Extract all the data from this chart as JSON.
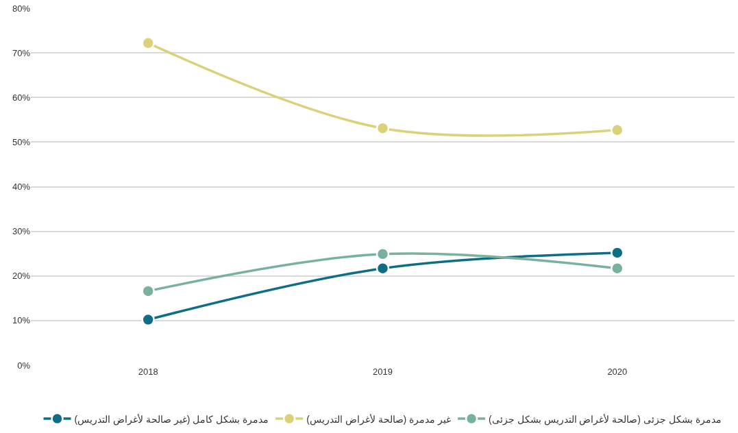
{
  "chart_data": {
    "type": "line",
    "categories": [
      "2018",
      "2019",
      "2020"
    ],
    "series": [
      {
        "name": "مدمرة بشكل كامل (غير صالحة لأغراض التدريس)",
        "color": "#0e6e85",
        "values": [
          10.2,
          21.7,
          25.2
        ]
      },
      {
        "name": "غير مدمرة (صالحة لأغراض التدريس)",
        "color": "#dbd179",
        "values": [
          72.2,
          53.1,
          52.7
        ]
      },
      {
        "name": "مدمرة بشكل جزئى (صالحة لأغراض التدريس بشكل جزئى)",
        "color": "#79b29c",
        "values": [
          16.6,
          24.9,
          21.7
        ]
      }
    ],
    "ylim": [
      0,
      80
    ],
    "yticks": [
      {
        "value": 0,
        "label": "0%"
      },
      {
        "value": 10,
        "label": "10%"
      },
      {
        "value": 20,
        "label": "20%"
      },
      {
        "value": 30,
        "label": "30%"
      },
      {
        "value": 40,
        "label": "40%"
      },
      {
        "value": 50,
        "label": "50%"
      },
      {
        "value": 60,
        "label": "60%"
      },
      {
        "value": 70,
        "label": "70%"
      },
      {
        "value": 80,
        "label": "80%"
      }
    ],
    "grid": "y",
    "legend": "bottom",
    "marker": "circle",
    "line_style": "solid"
  }
}
